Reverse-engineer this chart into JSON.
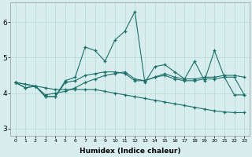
{
  "xlabel": "Humidex (Indice chaleur)",
  "xlim": [
    -0.5,
    23.5
  ],
  "ylim": [
    2.8,
    6.55
  ],
  "yticks": [
    3,
    4,
    5,
    6
  ],
  "xticks": [
    0,
    1,
    2,
    3,
    4,
    5,
    6,
    7,
    8,
    9,
    10,
    11,
    12,
    13,
    14,
    15,
    16,
    17,
    18,
    19,
    20,
    21,
    22,
    23
  ],
  "bg_color": "#d8eeee",
  "line_color": "#1a7068",
  "grid_color": "#b8d8d8",
  "lines": [
    {
      "x": [
        0,
        1,
        2,
        3,
        4,
        5,
        6,
        7,
        8,
        9,
        10,
        11,
        12,
        13,
        14,
        15,
        16,
        17,
        18,
        19,
        20,
        21,
        22,
        23
      ],
      "y": [
        4.3,
        4.15,
        4.2,
        3.9,
        3.9,
        4.35,
        4.45,
        5.3,
        5.2,
        4.9,
        5.5,
        5.75,
        6.3,
        4.3,
        4.75,
        4.8,
        4.6,
        4.4,
        4.9,
        4.35,
        5.2,
        4.45,
        3.95,
        3.95
      ]
    },
    {
      "x": [
        0,
        1,
        2,
        3,
        4,
        5,
        6,
        7,
        8,
        9,
        10,
        11,
        12,
        13,
        14,
        15,
        16,
        17,
        18,
        19,
        20,
        21,
        22,
        23
      ],
      "y": [
        4.3,
        4.15,
        4.2,
        3.95,
        4.0,
        4.05,
        4.15,
        4.3,
        4.4,
        4.5,
        4.55,
        4.6,
        4.4,
        4.35,
        4.45,
        4.55,
        4.45,
        4.4,
        4.4,
        4.45,
        4.45,
        4.5,
        4.5,
        4.45
      ]
    },
    {
      "x": [
        0,
        1,
        2,
        3,
        4,
        5,
        6,
        7,
        8,
        9,
        10,
        11,
        12,
        13,
        14,
        15,
        16,
        17,
        18,
        19,
        20,
        21,
        22,
        23
      ],
      "y": [
        4.3,
        4.25,
        4.2,
        4.15,
        4.1,
        4.1,
        4.1,
        4.1,
        4.1,
        4.05,
        4.0,
        3.95,
        3.9,
        3.85,
        3.8,
        3.75,
        3.7,
        3.65,
        3.6,
        3.55,
        3.5,
        3.47,
        3.45,
        3.45
      ]
    },
    {
      "x": [
        0,
        2,
        3,
        4,
        5,
        6,
        7,
        8,
        9,
        10,
        11,
        12,
        13,
        14,
        15,
        16,
        17,
        18,
        19,
        20,
        21,
        22,
        23
      ],
      "y": [
        4.3,
        4.2,
        3.9,
        3.9,
        4.3,
        4.35,
        4.5,
        4.55,
        4.6,
        4.6,
        4.55,
        4.35,
        4.35,
        4.45,
        4.5,
        4.4,
        4.35,
        4.35,
        4.4,
        4.4,
        4.45,
        4.45,
        3.95
      ]
    }
  ]
}
